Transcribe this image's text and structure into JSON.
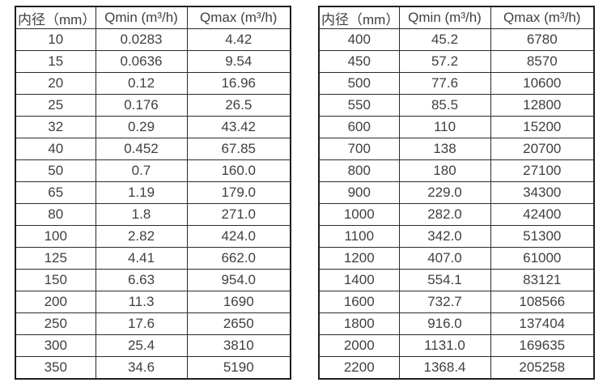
{
  "colors": {
    "text-color": "#404040",
    "border-color": "#2b2b2b",
    "outer-border-color": "#1f1f1f",
    "background": "#ffffff"
  },
  "tables": [
    {
      "headers": [
        "内径（mm）",
        "Qmin (m³/h)",
        "Qmax (m³/h)"
      ],
      "rows": [
        [
          "10",
          "0.0283",
          "4.42"
        ],
        [
          "15",
          "0.0636",
          "9.54"
        ],
        [
          "20",
          "0.12",
          "16.96"
        ],
        [
          "25",
          "0.176",
          "26.5"
        ],
        [
          "32",
          "0.29",
          "43.42"
        ],
        [
          "40",
          "0.452",
          "67.85"
        ],
        [
          "50",
          "0.7",
          "160.0"
        ],
        [
          "65",
          "1.19",
          "179.0"
        ],
        [
          "80",
          "1.8",
          "271.0"
        ],
        [
          "100",
          "2.82",
          "424.0"
        ],
        [
          "125",
          "4.41",
          "662.0"
        ],
        [
          "150",
          "6.63",
          "954.0"
        ],
        [
          "200",
          "11.3",
          "1690"
        ],
        [
          "250",
          "17.6",
          "2650"
        ],
        [
          "300",
          "25.4",
          "3810"
        ],
        [
          "350",
          "34.6",
          "5190"
        ]
      ]
    },
    {
      "headers": [
        "内径（mm）",
        "Qmin (m³/h)",
        "Qmax (m³/h)"
      ],
      "rows": [
        [
          "400",
          "45.2",
          "6780"
        ],
        [
          "450",
          "57.2",
          "8570"
        ],
        [
          "500",
          "77.6",
          "10600"
        ],
        [
          "550",
          "85.5",
          "12800"
        ],
        [
          "600",
          "110",
          "15200"
        ],
        [
          "700",
          "138",
          "20700"
        ],
        [
          "800",
          "180",
          "27100"
        ],
        [
          "900",
          "229.0",
          "34300"
        ],
        [
          "1000",
          "282.0",
          "42400"
        ],
        [
          "1100",
          "342.0",
          "51300"
        ],
        [
          "1200",
          "407.0",
          "61000"
        ],
        [
          "1400",
          "554.1",
          "83121"
        ],
        [
          "1600",
          "732.7",
          "108566"
        ],
        [
          "1800",
          "916.0",
          "137404"
        ],
        [
          "2000",
          "1131.0",
          "169635"
        ],
        [
          "2200",
          "1368.4",
          "205258"
        ]
      ]
    }
  ]
}
